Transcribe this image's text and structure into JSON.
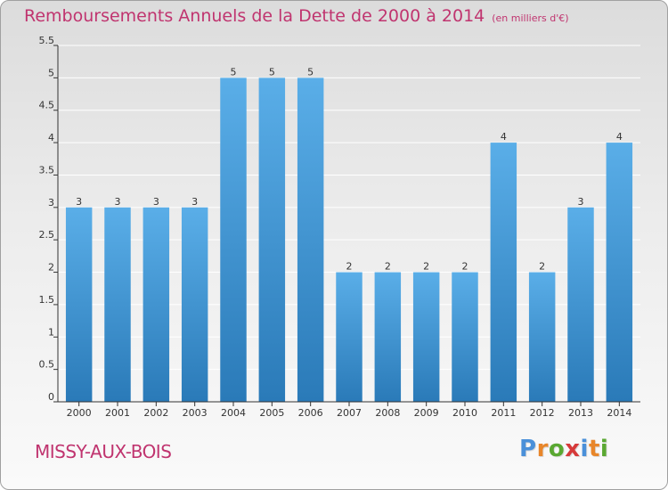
{
  "header": {
    "title": "Remboursements Annuels de la Dette de 2000 à 2014",
    "unit": "(en milliers d'€)"
  },
  "footer": {
    "commune": "MISSY-AUX-BOIS",
    "brand": "Proxiti",
    "brand_letter_colors": [
      "#4a90d9",
      "#e8862a",
      "#5aa832",
      "#d63a3a",
      "#4a90d9",
      "#e8862a",
      "#5aa832"
    ]
  },
  "colors": {
    "title": "#c0346f",
    "bar_light": "#5aaee8",
    "bar_dark": "#2a7ab8",
    "grid": "#ffffff",
    "axis": "#333333"
  },
  "chart_data": {
    "type": "bar",
    "title": "Remboursements Annuels de la Dette de 2000 à 2014",
    "ylabel": "",
    "xlabel": "",
    "categories": [
      "2000",
      "2001",
      "2002",
      "2003",
      "2004",
      "2005",
      "2006",
      "2007",
      "2008",
      "2009",
      "2010",
      "2011",
      "2012",
      "2013",
      "2014"
    ],
    "values": [
      3,
      3,
      3,
      3,
      5,
      5,
      5,
      2,
      2,
      2,
      2,
      4,
      2,
      3,
      4
    ],
    "ylim": [
      0,
      5.5
    ],
    "yticks": [
      0,
      0.5,
      1,
      1.5,
      2,
      2.5,
      3,
      3.5,
      4,
      4.5,
      5,
      5.5
    ],
    "grid": true,
    "legend": "none"
  }
}
